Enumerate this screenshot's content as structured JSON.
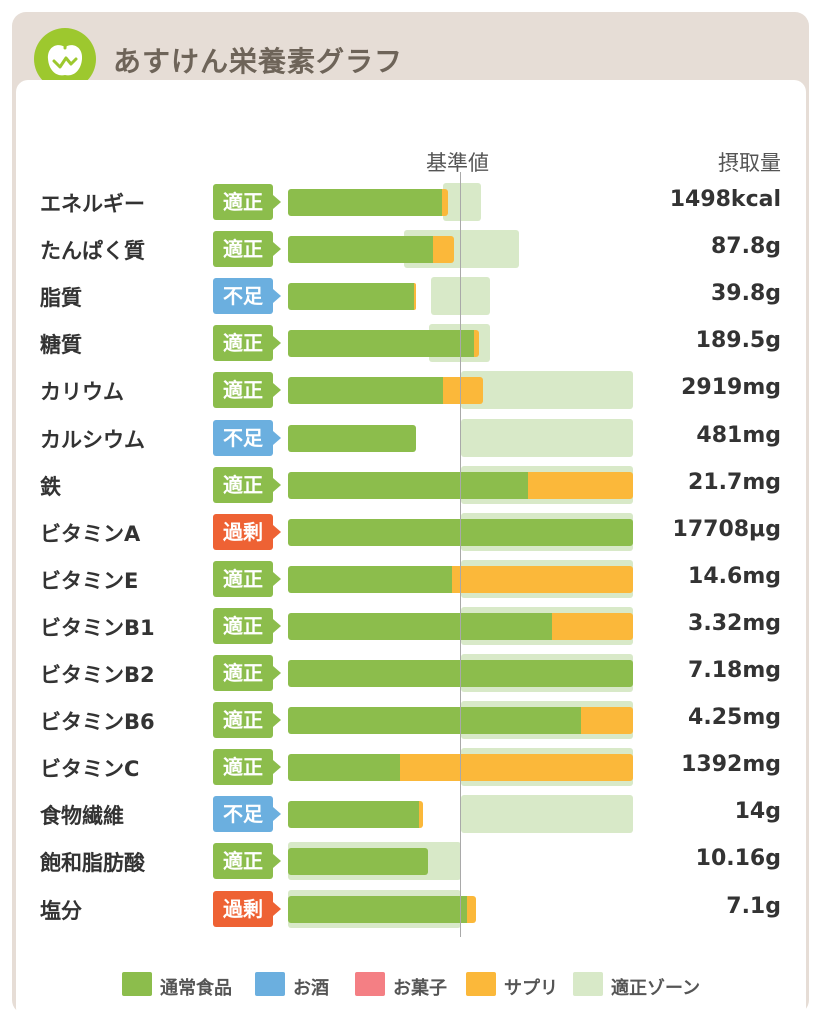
{
  "header": {
    "title": "あすけん栄養素グラフ",
    "logo_icon": "apple-icon",
    "accent": "#9dc82e"
  },
  "columns": {
    "reference": "基準値",
    "intake": "摂取量"
  },
  "colors": {
    "normal_food": "#8cbd4c",
    "alcohol": "#6bafdf",
    "snack": "#f47f84",
    "supplement": "#fbb83a",
    "zone": "#d8e9c8",
    "status_ok": "#8cbd4c",
    "status_low": "#6bafdf",
    "status_high": "#ee6234"
  },
  "chart_data": {
    "type": "bar",
    "orientation": "horizontal",
    "stacked": true,
    "title": "あすけん栄養素グラフ",
    "reference_label": "基準値",
    "value_column_label": "摂取量",
    "units": "percent of 基準値",
    "xlim": [
      0,
      200
    ],
    "categories": [
      "エネルギー",
      "たんぱく質",
      "脂質",
      "糖質",
      "カリウム",
      "カルシウム",
      "鉄",
      "ビタミンA",
      "ビタミンE",
      "ビタミンB1",
      "ビタミンB2",
      "ビタミンB6",
      "ビタミンC",
      "食物繊維",
      "飽和脂肪酸",
      "塩分"
    ],
    "status": [
      "適正",
      "適正",
      "不足",
      "適正",
      "適正",
      "不足",
      "適正",
      "過剰",
      "適正",
      "適正",
      "適正",
      "適正",
      "適正",
      "不足",
      "適正",
      "過剰"
    ],
    "intake": [
      "1498kcal",
      "87.8g",
      "39.8g",
      "189.5g",
      "2919mg",
      "481mg",
      "21.7mg",
      "17708μg",
      "14.6mg",
      "3.32mg",
      "7.18mg",
      "4.25mg",
      "1392mg",
      "14g",
      "10.16g",
      "7.1g"
    ],
    "series": [
      {
        "name": "通常食品",
        "values": [
          89,
          84,
          73,
          108,
          90,
          74,
          139,
          200,
          95,
          153,
          200,
          170,
          65,
          76,
          81,
          104
        ]
      },
      {
        "name": "お酒",
        "values": [
          0,
          0,
          0,
          0,
          0,
          0,
          0,
          0,
          0,
          0,
          0,
          0,
          0,
          0,
          0,
          0
        ]
      },
      {
        "name": "お菓子",
        "values": [
          0,
          0,
          0,
          0,
          0,
          0,
          0,
          0,
          0,
          0,
          0,
          0,
          0,
          0,
          0,
          0
        ]
      },
      {
        "name": "サプリ",
        "values": [
          4,
          12,
          1,
          3,
          23,
          0,
          61,
          0,
          105,
          47,
          0,
          30,
          135,
          2,
          0,
          5
        ]
      }
    ],
    "zones": [
      [
        90,
        112
      ],
      [
        67,
        134
      ],
      [
        83,
        117
      ],
      [
        82,
        117
      ],
      [
        100,
        200
      ],
      [
        100,
        200
      ],
      [
        100,
        200
      ],
      [
        100,
        200
      ],
      [
        100,
        200
      ],
      [
        100,
        200
      ],
      [
        100,
        200
      ],
      [
        100,
        200
      ],
      [
        100,
        200
      ],
      [
        100,
        200
      ],
      [
        0,
        100
      ],
      [
        0,
        100
      ]
    ],
    "legend": [
      "通常食品",
      "お酒",
      "お菓子",
      "サプリ",
      "適正ゾーン"
    ]
  }
}
